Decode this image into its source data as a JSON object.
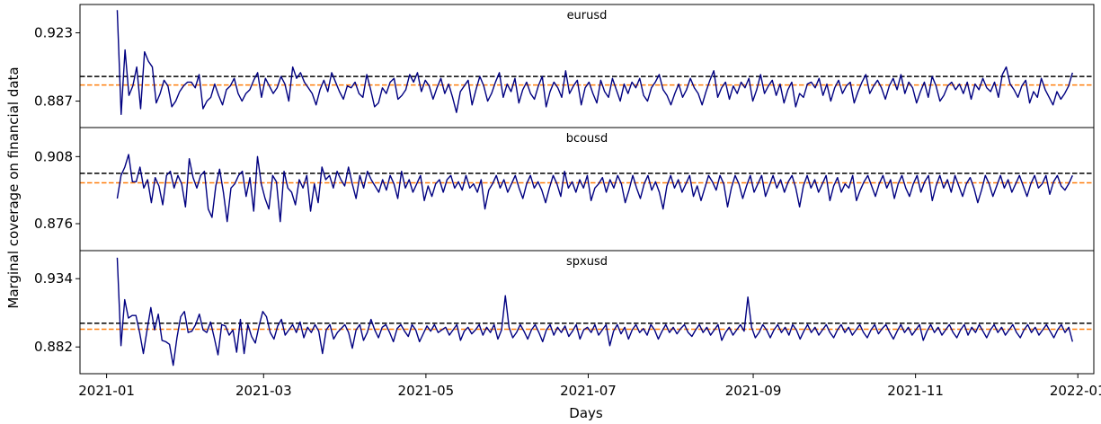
{
  "chart_data": {
    "type": "line",
    "xlabel": "Days",
    "ylabel": "Marginal coverage on financial data",
    "x_range": [
      "2020-12-22",
      "2022-01-07"
    ],
    "x_ticks": [
      {
        "date": "2021-01-01",
        "label": "2021-01"
      },
      {
        "date": "2021-03-01",
        "label": "2021-03"
      },
      {
        "date": "2021-05-01",
        "label": "2021-05"
      },
      {
        "date": "2021-07-01",
        "label": "2021-07"
      },
      {
        "date": "2021-09-01",
        "label": "2021-09"
      },
      {
        "date": "2021-11-01",
        "label": "2021-11"
      },
      {
        "date": "2022-01-01",
        "label": "2022-01"
      }
    ],
    "x_start": "2021-01-05",
    "x_end": "2021-12-30",
    "line_color": "#000080",
    "target_line_color": "#000000",
    "mean_line_color": "#ff7f0e",
    "panels": [
      {
        "title": "eurusd",
        "yticks": [
          {
            "value": 0.923,
            "label": "0.923"
          },
          {
            "value": 0.887,
            "label": "0.887"
          }
        ],
        "ylim": [
          0.874,
          0.937
        ],
        "target": 0.9,
        "mean": 0.8955,
        "values": [
          0.935,
          0.88,
          0.914,
          0.89,
          0.895,
          0.905,
          0.883,
          0.913,
          0.908,
          0.905,
          0.886,
          0.891,
          0.898,
          0.895,
          0.884,
          0.887,
          0.892,
          0.895,
          0.897,
          0.897,
          0.894,
          0.901,
          0.883,
          0.887,
          0.889,
          0.896,
          0.89,
          0.885,
          0.893,
          0.895,
          0.899,
          0.891,
          0.887,
          0.891,
          0.893,
          0.898,
          0.902,
          0.889,
          0.899,
          0.895,
          0.891,
          0.894,
          0.9,
          0.896,
          0.887,
          0.905,
          0.899,
          0.902,
          0.897,
          0.894,
          0.891,
          0.885,
          0.893,
          0.898,
          0.892,
          0.902,
          0.897,
          0.892,
          0.888,
          0.895,
          0.894,
          0.897,
          0.891,
          0.889,
          0.901,
          0.893,
          0.884,
          0.886,
          0.894,
          0.891,
          0.897,
          0.899,
          0.888,
          0.89,
          0.893,
          0.901,
          0.897,
          0.902,
          0.892,
          0.898,
          0.895,
          0.888,
          0.894,
          0.899,
          0.891,
          0.896,
          0.889,
          0.881,
          0.892,
          0.895,
          0.898,
          0.885,
          0.893,
          0.9,
          0.895,
          0.887,
          0.891,
          0.897,
          0.902,
          0.889,
          0.896,
          0.892,
          0.899,
          0.886,
          0.893,
          0.897,
          0.891,
          0.888,
          0.895,
          0.9,
          0.884,
          0.892,
          0.897,
          0.894,
          0.889,
          0.903,
          0.891,
          0.895,
          0.898,
          0.885,
          0.894,
          0.897,
          0.891,
          0.886,
          0.898,
          0.892,
          0.889,
          0.899,
          0.893,
          0.887,
          0.896,
          0.891,
          0.897,
          0.894,
          0.899,
          0.89,
          0.887,
          0.894,
          0.897,
          0.901,
          0.893,
          0.89,
          0.885,
          0.891,
          0.896,
          0.889,
          0.893,
          0.899,
          0.894,
          0.891,
          0.885,
          0.892,
          0.898,
          0.903,
          0.889,
          0.894,
          0.897,
          0.888,
          0.895,
          0.891,
          0.897,
          0.894,
          0.899,
          0.887,
          0.893,
          0.901,
          0.891,
          0.895,
          0.898,
          0.89,
          0.896,
          0.886,
          0.893,
          0.897,
          0.884,
          0.891,
          0.889,
          0.896,
          0.897,
          0.894,
          0.899,
          0.89,
          0.896,
          0.887,
          0.894,
          0.898,
          0.891,
          0.895,
          0.897,
          0.886,
          0.892,
          0.897,
          0.901,
          0.891,
          0.895,
          0.898,
          0.894,
          0.888,
          0.895,
          0.899,
          0.893,
          0.901,
          0.891,
          0.897,
          0.894,
          0.886,
          0.892,
          0.897,
          0.889,
          0.9,
          0.895,
          0.887,
          0.89,
          0.895,
          0.897,
          0.893,
          0.896,
          0.891,
          0.897,
          0.888,
          0.896,
          0.893,
          0.899,
          0.894,
          0.892,
          0.897,
          0.889,
          0.901,
          0.905,
          0.896,
          0.893,
          0.889,
          0.895,
          0.898,
          0.886,
          0.892,
          0.889,
          0.899,
          0.893,
          0.889,
          0.885,
          0.892,
          0.888,
          0.891,
          0.895,
          0.902
        ]
      },
      {
        "title": "bcousd",
        "yticks": [
          {
            "value": 0.908,
            "label": "0.908"
          },
          {
            "value": 0.876,
            "label": "0.876"
          }
        ],
        "ylim": [
          0.864,
          0.921
        ],
        "target": 0.9,
        "mean": 0.8955,
        "values": [
          0.888,
          0.899,
          0.903,
          0.909,
          0.896,
          0.896,
          0.903,
          0.893,
          0.897,
          0.886,
          0.898,
          0.894,
          0.885,
          0.899,
          0.901,
          0.893,
          0.899,
          0.895,
          0.884,
          0.907,
          0.898,
          0.893,
          0.899,
          0.901,
          0.883,
          0.879,
          0.894,
          0.902,
          0.891,
          0.877,
          0.893,
          0.895,
          0.899,
          0.901,
          0.889,
          0.898,
          0.882,
          0.908,
          0.895,
          0.888,
          0.883,
          0.899,
          0.896,
          0.877,
          0.901,
          0.893,
          0.891,
          0.885,
          0.897,
          0.893,
          0.899,
          0.882,
          0.895,
          0.886,
          0.903,
          0.897,
          0.899,
          0.893,
          0.901,
          0.897,
          0.894,
          0.903,
          0.895,
          0.888,
          0.899,
          0.893,
          0.901,
          0.897,
          0.894,
          0.891,
          0.897,
          0.892,
          0.899,
          0.895,
          0.888,
          0.901,
          0.893,
          0.897,
          0.891,
          0.895,
          0.899,
          0.887,
          0.894,
          0.889,
          0.895,
          0.897,
          0.891,
          0.897,
          0.899,
          0.893,
          0.896,
          0.892,
          0.899,
          0.893,
          0.895,
          0.891,
          0.897,
          0.883,
          0.892,
          0.895,
          0.899,
          0.893,
          0.897,
          0.891,
          0.895,
          0.899,
          0.893,
          0.888,
          0.895,
          0.899,
          0.893,
          0.896,
          0.892,
          0.886,
          0.893,
          0.899,
          0.895,
          0.889,
          0.901,
          0.893,
          0.896,
          0.891,
          0.897,
          0.893,
          0.899,
          0.887,
          0.893,
          0.895,
          0.898,
          0.891,
          0.897,
          0.893,
          0.899,
          0.895,
          0.886,
          0.892,
          0.899,
          0.893,
          0.888,
          0.895,
          0.899,
          0.892,
          0.896,
          0.891,
          0.883,
          0.894,
          0.899,
          0.893,
          0.897,
          0.891,
          0.895,
          0.899,
          0.889,
          0.894,
          0.887,
          0.893,
          0.899,
          0.896,
          0.892,
          0.899,
          0.895,
          0.884,
          0.893,
          0.899,
          0.895,
          0.888,
          0.894,
          0.899,
          0.891,
          0.895,
          0.899,
          0.889,
          0.894,
          0.899,
          0.893,
          0.897,
          0.891,
          0.896,
          0.899,
          0.893,
          0.884,
          0.894,
          0.899,
          0.893,
          0.897,
          0.891,
          0.895,
          0.899,
          0.887,
          0.894,
          0.898,
          0.891,
          0.895,
          0.893,
          0.899,
          0.887,
          0.892,
          0.896,
          0.899,
          0.894,
          0.889,
          0.895,
          0.899,
          0.893,
          0.897,
          0.888,
          0.895,
          0.899,
          0.893,
          0.889,
          0.895,
          0.899,
          0.891,
          0.896,
          0.899,
          0.887,
          0.894,
          0.899,
          0.893,
          0.897,
          0.891,
          0.899,
          0.894,
          0.889,
          0.895,
          0.898,
          0.893,
          0.886,
          0.892,
          0.899,
          0.895,
          0.889,
          0.894,
          0.899,
          0.893,
          0.897,
          0.891,
          0.895,
          0.899,
          0.894,
          0.889,
          0.895,
          0.899,
          0.893,
          0.895,
          0.899,
          0.89,
          0.896,
          0.899,
          0.894,
          0.892,
          0.895,
          0.899
        ]
      },
      {
        "title": "spxusd",
        "yticks": [
          {
            "value": 0.934,
            "label": "0.934"
          },
          {
            "value": 0.882,
            "label": "0.882"
          }
        ],
        "ylim": [
          0.863,
          0.954
        ],
        "target": 0.9,
        "mean": 0.8955,
        "values": [
          0.95,
          0.883,
          0.918,
          0.904,
          0.906,
          0.906,
          0.893,
          0.877,
          0.895,
          0.912,
          0.895,
          0.907,
          0.887,
          0.886,
          0.884,
          0.868,
          0.889,
          0.905,
          0.909,
          0.893,
          0.894,
          0.899,
          0.907,
          0.895,
          0.893,
          0.901,
          0.889,
          0.876,
          0.899,
          0.898,
          0.891,
          0.895,
          0.878,
          0.903,
          0.877,
          0.899,
          0.89,
          0.885,
          0.898,
          0.909,
          0.905,
          0.893,
          0.888,
          0.898,
          0.903,
          0.891,
          0.895,
          0.899,
          0.893,
          0.901,
          0.889,
          0.897,
          0.893,
          0.899,
          0.894,
          0.877,
          0.895,
          0.899,
          0.888,
          0.893,
          0.896,
          0.899,
          0.893,
          0.881,
          0.895,
          0.899,
          0.887,
          0.893,
          0.903,
          0.895,
          0.889,
          0.897,
          0.899,
          0.893,
          0.886,
          0.896,
          0.899,
          0.894,
          0.89,
          0.899,
          0.895,
          0.886,
          0.892,
          0.898,
          0.894,
          0.899,
          0.893,
          0.895,
          0.897,
          0.891,
          0.895,
          0.899,
          0.887,
          0.894,
          0.897,
          0.892,
          0.895,
          0.899,
          0.891,
          0.897,
          0.893,
          0.899,
          0.888,
          0.895,
          0.921,
          0.897,
          0.889,
          0.893,
          0.899,
          0.894,
          0.888,
          0.895,
          0.899,
          0.893,
          0.886,
          0.895,
          0.899,
          0.891,
          0.897,
          0.893,
          0.898,
          0.89,
          0.894,
          0.899,
          0.888,
          0.895,
          0.897,
          0.893,
          0.899,
          0.891,
          0.895,
          0.899,
          0.883,
          0.894,
          0.899,
          0.892,
          0.897,
          0.888,
          0.895,
          0.899,
          0.893,
          0.896,
          0.891,
          0.899,
          0.895,
          0.888,
          0.894,
          0.899,
          0.893,
          0.897,
          0.892,
          0.896,
          0.899,
          0.893,
          0.89,
          0.895,
          0.899,
          0.893,
          0.897,
          0.891,
          0.895,
          0.899,
          0.887,
          0.893,
          0.897,
          0.891,
          0.895,
          0.899,
          0.894,
          0.92,
          0.897,
          0.889,
          0.893,
          0.899,
          0.895,
          0.889,
          0.895,
          0.899,
          0.893,
          0.897,
          0.891,
          0.899,
          0.895,
          0.888,
          0.894,
          0.899,
          0.893,
          0.897,
          0.891,
          0.895,
          0.899,
          0.893,
          0.889,
          0.895,
          0.899,
          0.893,
          0.897,
          0.891,
          0.895,
          0.899,
          0.893,
          0.889,
          0.895,
          0.899,
          0.892,
          0.896,
          0.899,
          0.893,
          0.888,
          0.894,
          0.899,
          0.893,
          0.897,
          0.891,
          0.895,
          0.899,
          0.887,
          0.894,
          0.899,
          0.893,
          0.897,
          0.891,
          0.895,
          0.899,
          0.893,
          0.889,
          0.895,
          0.899,
          0.891,
          0.897,
          0.893,
          0.899,
          0.894,
          0.889,
          0.895,
          0.899,
          0.893,
          0.897,
          0.891,
          0.895,
          0.899,
          0.893,
          0.889,
          0.895,
          0.899,
          0.893,
          0.897,
          0.891,
          0.895,
          0.899,
          0.894,
          0.889,
          0.895,
          0.899,
          0.893,
          0.897,
          0.886
        ]
      }
    ]
  }
}
